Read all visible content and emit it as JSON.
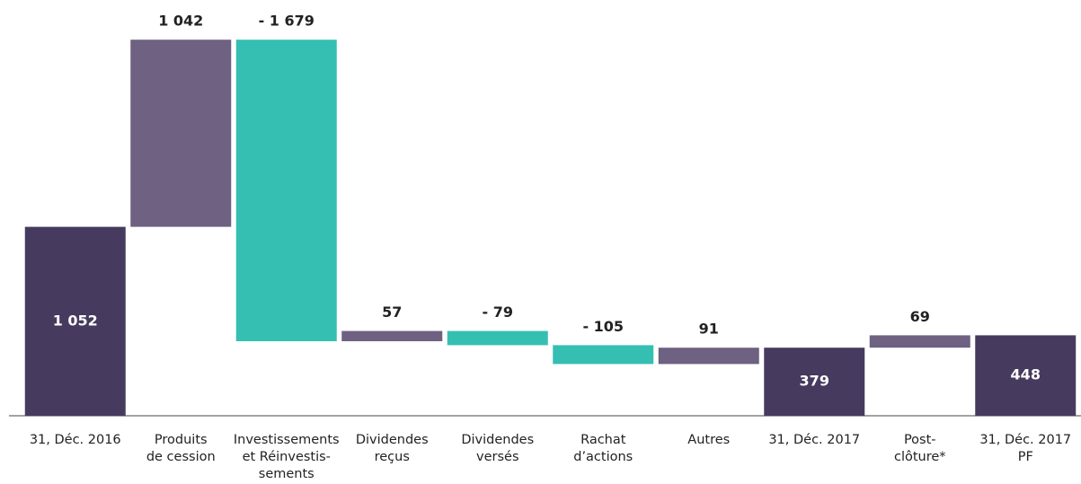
{
  "chart_data": {
    "type": "waterfall",
    "categories": [
      [
        "31, Déc. 2016"
      ],
      [
        "Produits",
        "de cession"
      ],
      [
        "Investissements",
        "et Réinvestis-",
        "sements"
      ],
      [
        "Dividendes",
        "reçus"
      ],
      [
        "Dividendes",
        "versés"
      ],
      [
        "Rachat",
        "d’actions"
      ],
      [
        "Autres"
      ],
      [
        "31, Déc. 2017"
      ],
      [
        "Post-",
        "clôture*"
      ],
      [
        "31, Déc. 2017",
        "PF"
      ]
    ],
    "values": [
      1052,
      1042,
      -1679,
      57,
      -79,
      -105,
      91,
      379,
      69,
      448
    ],
    "value_labels": [
      "1 052",
      "1 042",
      "- 1 679",
      "57",
      "- 79",
      "- 105",
      "91",
      "379",
      "69",
      "448"
    ],
    "is_total": [
      true,
      false,
      false,
      false,
      false,
      false,
      false,
      true,
      false,
      true
    ],
    "colors": {
      "total": "#463a5e",
      "increase": "#6e6182",
      "decrease": "#35bfb3"
    },
    "ylim": [
      0,
      2200
    ]
  }
}
